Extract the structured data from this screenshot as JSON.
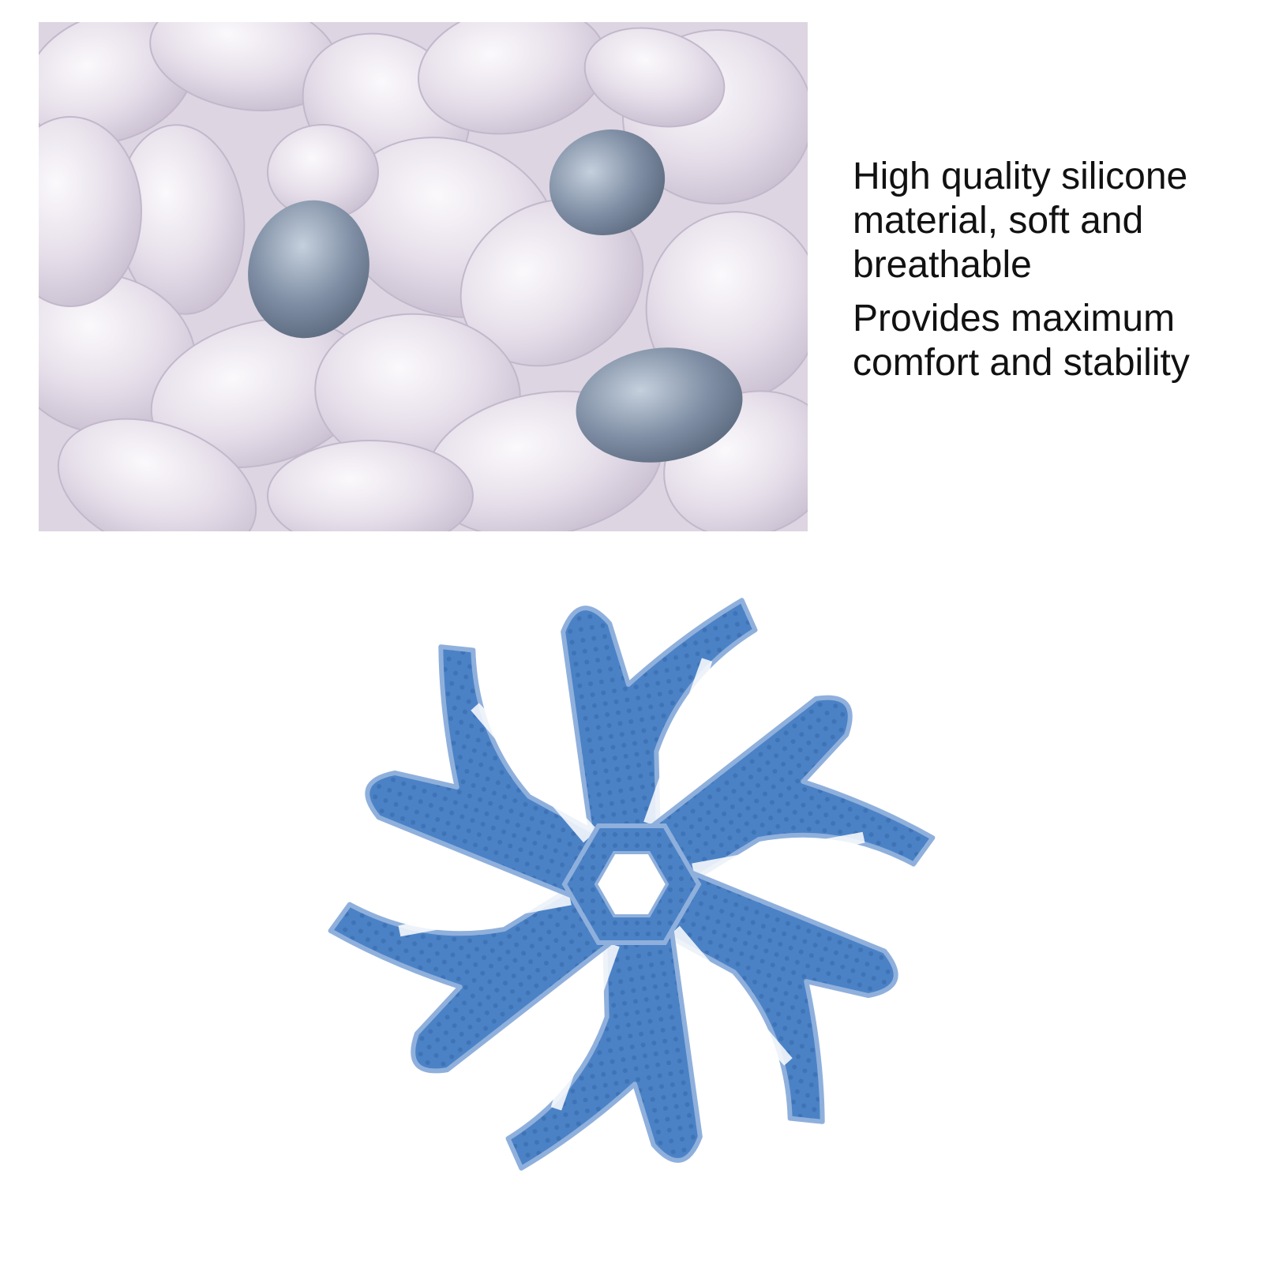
{
  "features": [
    "High quality silicone material, soft and breathable",
    "Provides maximum comfort and stability"
  ],
  "colors": {
    "background": "#ffffff",
    "pellet": "#e8e2ec",
    "pellet_shadow": "#cfc6d6",
    "grey_pellet": "#8a97ab",
    "product_blue": "#4b82c6",
    "product_edge": "#3a6fb3"
  },
  "images": {
    "photo": "silicone-pellets-photo",
    "product": "blue-silicone-mask-bracket"
  }
}
